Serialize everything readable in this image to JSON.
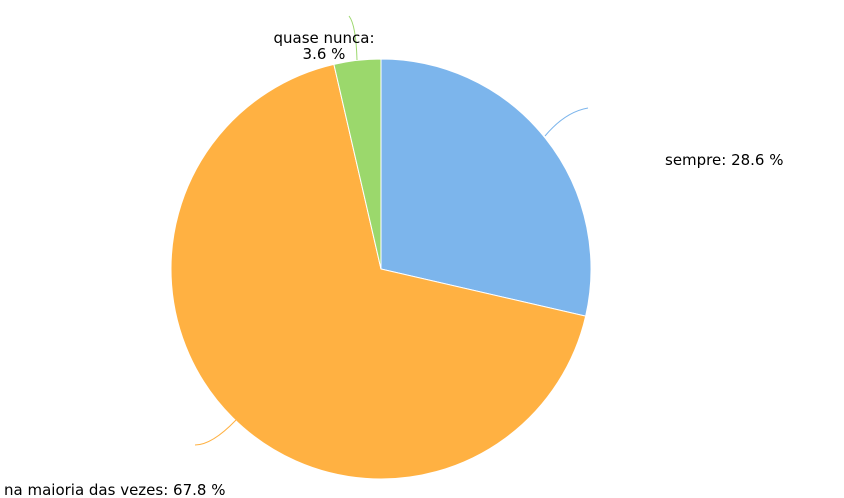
{
  "chart_data": {
    "type": "pie",
    "values": [
      28.6,
      67.8,
      3.6
    ],
    "value_labels": [
      "sempre: 28.6 %",
      "na maioria das vezes: 67.8 %",
      "quase nunca: 3.6 %"
    ],
    "colors": [
      "#7cb5ec",
      "#ffb142",
      "#9bd86c"
    ]
  }
}
